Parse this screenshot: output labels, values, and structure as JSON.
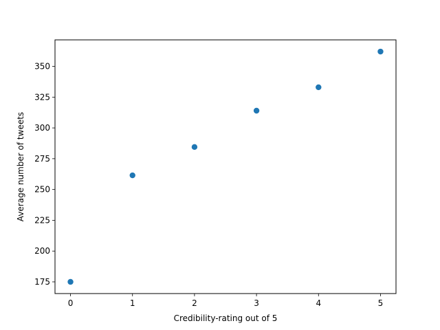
{
  "chart_data": {
    "type": "scatter",
    "title": "",
    "xlabel": "Credibility-rating out of 5",
    "ylabel": "Average number of tweets",
    "x": [
      0,
      1,
      2,
      3,
      4,
      5
    ],
    "y": [
      175,
      261.5,
      284.5,
      314,
      333,
      362
    ],
    "xlim": [
      -0.25,
      5.25
    ],
    "ylim": [
      165.5,
      371.5
    ],
    "xticks": [
      0,
      1,
      2,
      3,
      4,
      5
    ],
    "yticks": [
      175,
      200,
      225,
      250,
      275,
      300,
      325,
      350
    ],
    "grid": false,
    "legend": "none",
    "colors": {
      "marker": "#1f77b4",
      "axes": "#000000",
      "background": "#ffffff"
    }
  }
}
